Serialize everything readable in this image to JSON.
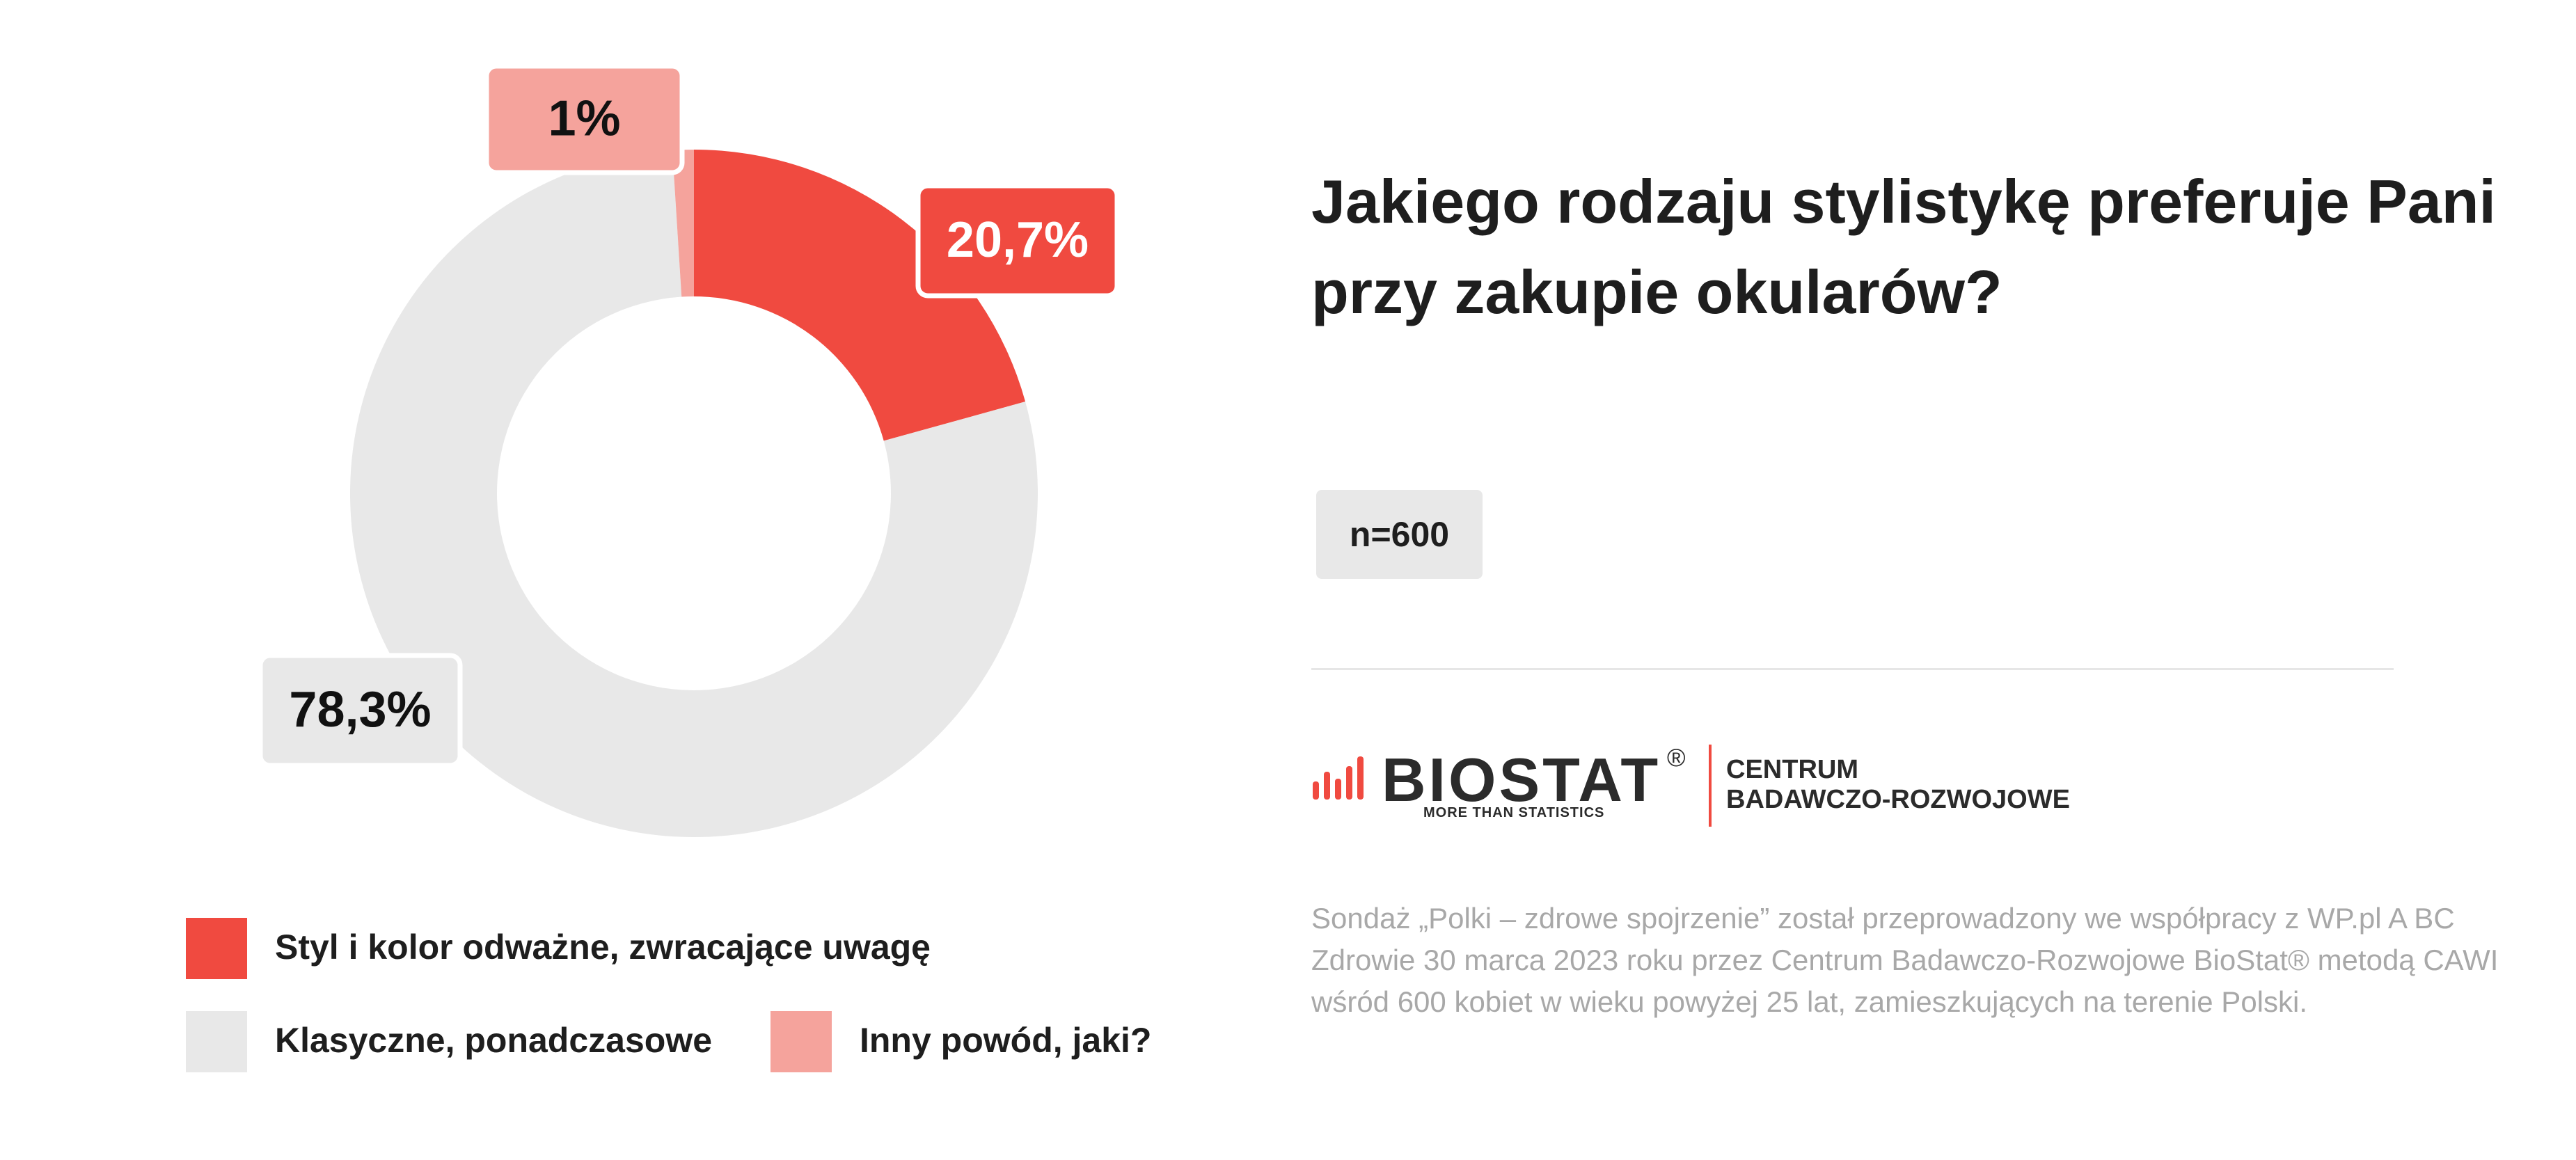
{
  "chart_data": {
    "type": "donut",
    "categories": [
      "Styl i kolor odważne, zwracające uwagę",
      "Klasyczne, ponadczasowe",
      "Inny powód, jaki?"
    ],
    "values": [
      20.7,
      78.3,
      1
    ],
    "value_labels": [
      "20,7%",
      "78,3%",
      "1%"
    ],
    "colors": [
      "#f04a40",
      "#e8e8e8",
      "#f5a39c"
    ]
  },
  "title": "Jakiego rodzaju stylistykę preferuje Pani przy zakupie okularów?",
  "sample": "n=600",
  "logo": {
    "name": "BIOSTAT",
    "mark": "®",
    "tagline": "MORE THAN STATISTICS",
    "unit_line1": "CENTRUM",
    "unit_line2": "BADAWCZO-ROZWOJOWE"
  },
  "footnote": "Sondaż „Polki – zdrowe spojrzenie” został przeprowadzony we współpracy z WP.pl A BC Zdrowie 30 marca 2023 roku przez Centrum Badawczo-Rozwojowe BioStat® metodą CAWI wśród 600 kobiet w wieku powyżej 25 lat, zamieszkujących na terenie Polski."
}
